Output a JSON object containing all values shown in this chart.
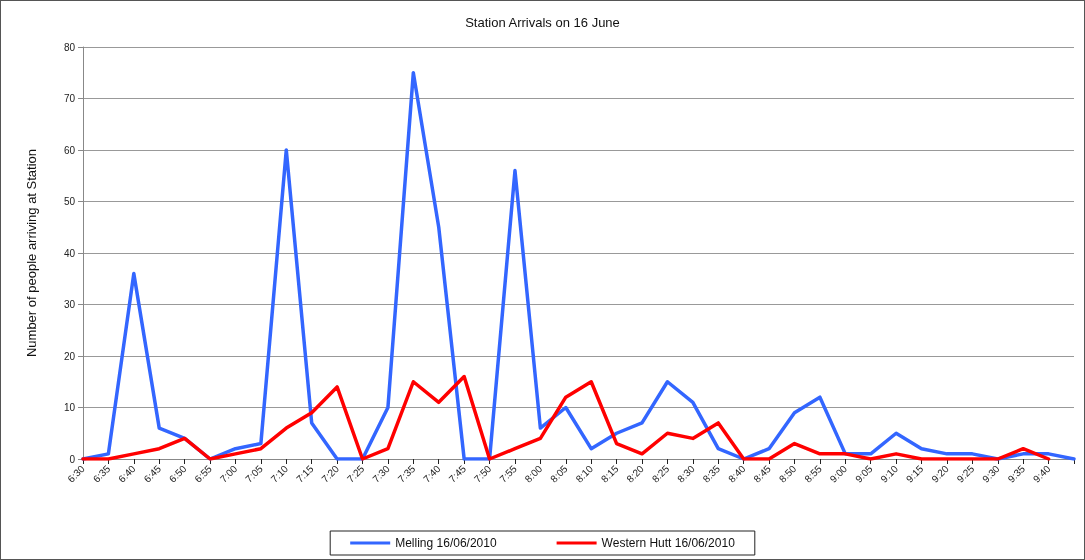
{
  "chart_data": {
    "type": "line",
    "title": "Station Arrivals on 16 June",
    "ylabel": "Number of people arriving at Station",
    "categories": [
      "6:30",
      "6:35",
      "6:40",
      "6:45",
      "6:50",
      "6:55",
      "7:00",
      "7:05",
      "7:10",
      "7:15",
      "7:20",
      "7:25",
      "7:30",
      "7:35",
      "7:40",
      "7:45",
      "7:50",
      "7:55",
      "8:00",
      "8:05",
      "8:10",
      "8:15",
      "8:20",
      "8:25",
      "8:30",
      "8:35",
      "8:40",
      "8:45",
      "8:50",
      "8:55",
      "9:00",
      "9:05",
      "9:10",
      "9:15",
      "9:20",
      "9:25",
      "9:30",
      "9:35",
      "9:40",
      null
    ],
    "series": [
      {
        "name": "Melling 16/06/2010",
        "color": "#3366ff",
        "values": [
          0,
          1,
          36,
          6,
          4,
          0,
          2,
          3,
          60,
          7,
          0,
          0,
          10,
          75,
          45,
          0,
          0,
          56,
          6,
          10,
          2,
          5,
          7,
          15,
          11,
          2,
          0,
          2,
          9,
          12,
          1,
          1,
          5,
          2,
          1,
          1,
          0,
          1,
          1,
          0
        ]
      },
      {
        "name": "Western Hutt 16/06/2010",
        "color": "#ff0000",
        "values": [
          0,
          0,
          1,
          2,
          4,
          0,
          1,
          2,
          6,
          9,
          14,
          0,
          2,
          15,
          11,
          16,
          0,
          2,
          4,
          12,
          15,
          3,
          1,
          5,
          4,
          7,
          0,
          0,
          3,
          1,
          1,
          0,
          1,
          0,
          0,
          0,
          0,
          2,
          0,
          null
        ]
      }
    ],
    "ylim": [
      0,
      80
    ],
    "yticks": [
      0,
      10,
      20,
      30,
      40,
      50,
      60,
      70,
      80
    ],
    "grid": "y",
    "legend": "bottom",
    "marker": "none",
    "line_style": "solid"
  }
}
